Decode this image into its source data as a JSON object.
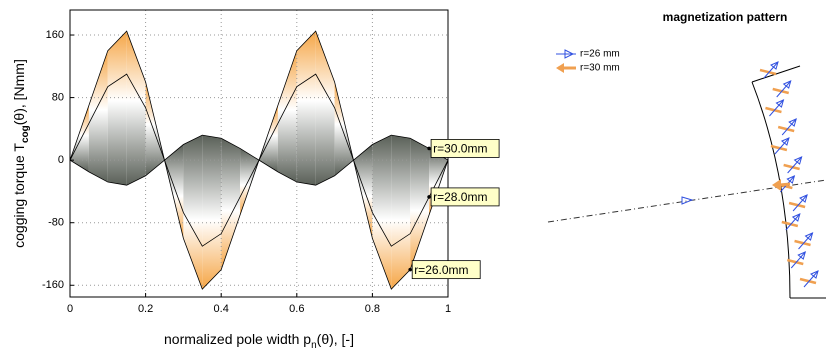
{
  "chart_data": [
    {
      "type": "line",
      "xlabel_parts": [
        "normalized pole width p",
        "n",
        "(θ), [-]"
      ],
      "ylabel_parts": [
        "cogging torque T",
        "cog",
        "(θ), [Nmm]"
      ],
      "x": [
        0,
        0.05,
        0.1,
        0.15,
        0.2,
        0.25,
        0.3,
        0.35,
        0.4,
        0.45,
        0.5,
        0.55,
        0.6,
        0.65,
        0.7,
        0.75,
        0.8,
        0.85,
        0.9,
        0.95,
        1
      ],
      "series": [
        {
          "name": "r=26.0mm",
          "color": "#f5a545",
          "values": [
            0,
            70,
            140,
            165,
            100,
            0,
            -100,
            -165,
            -140,
            -70,
            0,
            70,
            140,
            165,
            100,
            0,
            -100,
            -165,
            -140,
            -70,
            0
          ]
        },
        {
          "name": "r=28.0mm",
          "color": "#ffffff",
          "values": [
            0,
            47,
            94,
            110,
            67,
            0,
            -67,
            -110,
            -94,
            -47,
            0,
            47,
            94,
            110,
            67,
            0,
            -67,
            -110,
            -94,
            -47,
            0
          ]
        },
        {
          "name": "r=30.0mm",
          "color": "#5a6058",
          "values": [
            0,
            -15,
            -28,
            -32,
            -20,
            0,
            20,
            32,
            28,
            15,
            0,
            -15,
            -28,
            -32,
            -20,
            0,
            20,
            32,
            28,
            15,
            0
          ]
        }
      ],
      "xlim": [
        0,
        1
      ],
      "xticks": [
        0,
        0.2,
        0.4,
        0.6,
        0.8,
        1
      ],
      "ylim": [
        -175,
        192
      ],
      "yticks": [
        -160,
        -80,
        0,
        80,
        160
      ],
      "grid": true
    },
    {
      "type": "quiver",
      "title": "magnetization pattern",
      "series": [
        {
          "name": "r=26 mm",
          "color": "#3050e0"
        },
        {
          "name": "r=30 mm",
          "color": "#f0a050"
        }
      ]
    }
  ]
}
